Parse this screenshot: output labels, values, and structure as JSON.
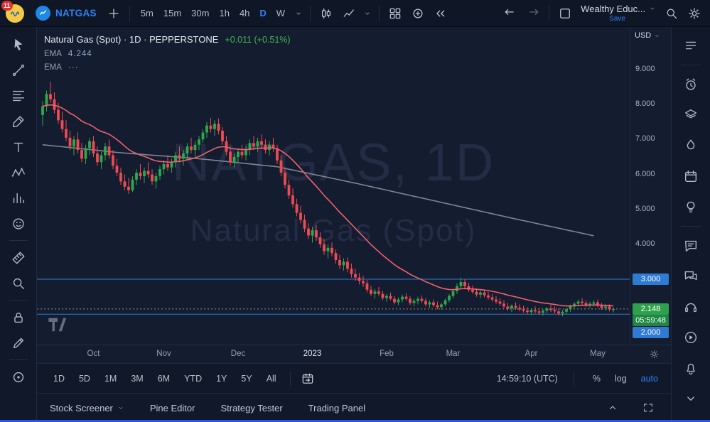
{
  "header": {
    "account_badge": "11",
    "symbol": "NATGAS",
    "timeframes": [
      "5m",
      "15m",
      "30m",
      "1h",
      "4h",
      "D",
      "W"
    ],
    "active_timeframe": "D",
    "layout_name": "Wealthy Educ...",
    "save_label": "Save"
  },
  "left_toolbar": {
    "icons": [
      "cursor",
      "trend-line",
      "fib-retracement",
      "brush",
      "text",
      "xabcd-pattern",
      "forecast",
      "emoji",
      "measure",
      "zoom",
      "lock-drawings",
      "edit-drawings",
      "hide-marks"
    ]
  },
  "right_sidebar": {
    "icons": [
      "watchlist",
      "alerts",
      "object-tree",
      "hotlists",
      "calendar",
      "ideas",
      "public-chats",
      "chat",
      "help",
      "video-tutorials",
      "notifications",
      "more"
    ]
  },
  "chart": {
    "legend_title": "Natural Gas (Spot) · 1D · PEPPERSTONE",
    "legend_change": "+0.011 (+0.51%)",
    "indicator1_name": "EMA",
    "indicator1_value": "4.244",
    "indicator2_name": "EMA",
    "indicator2_value": "···",
    "watermark_top": "NATGAS, 1D",
    "watermark_bottom": "Natural Gas (Spot)",
    "currency_button": "USD",
    "last_price_label": "2.148",
    "countdown": "05:59:48"
  },
  "range_toolbar": {
    "ranges": [
      "1D",
      "5D",
      "1M",
      "3M",
      "6M",
      "YTD",
      "1Y",
      "5Y",
      "All"
    ],
    "clock": "14:59:10 (UTC)",
    "percent_label": "%",
    "log_label": "log",
    "auto_label": "auto"
  },
  "footer": {
    "tabs": [
      "Stock Screener",
      "Pine Editor",
      "Strategy Tester",
      "Trading Panel"
    ]
  },
  "colors": {
    "up": "#2fa84d",
    "down": "#ef4a52",
    "ema_fast": "#f0616d",
    "ema_slow": "#9298a4",
    "level_line": "#2e7bd3",
    "level_label_bg": "#2e7bd3",
    "last_price_bg": "#2fa14d",
    "countdown_bg": "#1f8743",
    "last_line": "#8b9099",
    "accent_blue": "#2f81f7",
    "change_green": "#40b750"
  },
  "chart_data": {
    "type": "candlestick",
    "title": "Natural Gas (Spot), 1D, PEPPERSTONE",
    "y_range": [
      1.13,
      10.22
    ],
    "y_ticks": [
      9,
      8,
      7,
      6,
      5,
      4
    ],
    "levels": [
      {
        "price": 3.0,
        "label": "3.000"
      },
      {
        "price": 2.0,
        "label": "2.000"
      }
    ],
    "last_price": 2.148,
    "ema_fast_period": 25,
    "ema_slow_points": [
      [
        0,
        6.85
      ],
      [
        20,
        6.62
      ],
      [
        40,
        6.45
      ],
      [
        60,
        6.22
      ],
      [
        80,
        5.75
      ],
      [
        100,
        5.25
      ],
      [
        120,
        4.75
      ],
      [
        141,
        4.244
      ]
    ],
    "x_ticks": [
      {
        "i": 13,
        "label": "Oct"
      },
      {
        "i": 31,
        "label": "Nov"
      },
      {
        "i": 50,
        "label": "Dec"
      },
      {
        "i": 69,
        "label": "2023",
        "year": true
      },
      {
        "i": 88,
        "label": "Feb"
      },
      {
        "i": 105,
        "label": "Mar"
      },
      {
        "i": 125,
        "label": "Apr"
      },
      {
        "i": 142,
        "label": "May"
      }
    ],
    "candles": [
      [
        7.7,
        8.1,
        7.4,
        7.95
      ],
      [
        7.95,
        8.4,
        7.8,
        8.3
      ],
      [
        8.3,
        8.65,
        8.05,
        8.15
      ],
      [
        8.15,
        8.35,
        7.75,
        7.85
      ],
      [
        7.85,
        8.05,
        7.45,
        7.55
      ],
      [
        7.55,
        7.8,
        7.2,
        7.3
      ],
      [
        7.3,
        7.55,
        6.95,
        7.05
      ],
      [
        7.05,
        7.25,
        6.7,
        6.8
      ],
      [
        6.8,
        7.1,
        6.55,
        7.0
      ],
      [
        7.0,
        7.2,
        6.6,
        6.7
      ],
      [
        6.7,
        6.9,
        6.35,
        6.45
      ],
      [
        6.45,
        6.85,
        6.3,
        6.75
      ],
      [
        6.75,
        7.05,
        6.55,
        6.95
      ],
      [
        6.95,
        7.1,
        6.5,
        6.6
      ],
      [
        6.6,
        6.8,
        6.25,
        6.35
      ],
      [
        6.35,
        6.65,
        6.15,
        6.55
      ],
      [
        6.55,
        6.9,
        6.4,
        6.8
      ],
      [
        6.8,
        7.0,
        6.45,
        6.55
      ],
      [
        6.55,
        6.7,
        6.15,
        6.25
      ],
      [
        6.25,
        6.45,
        5.95,
        6.05
      ],
      [
        6.05,
        6.2,
        5.7,
        5.8
      ],
      [
        5.8,
        6.0,
        5.55,
        5.65
      ],
      [
        5.65,
        5.9,
        5.45,
        5.55
      ],
      [
        5.55,
        5.95,
        5.5,
        5.85
      ],
      [
        5.85,
        6.15,
        5.7,
        6.05
      ],
      [
        6.05,
        6.3,
        5.85,
        5.95
      ],
      [
        5.95,
        6.2,
        5.75,
        6.1
      ],
      [
        6.1,
        6.35,
        5.9,
        6.0
      ],
      [
        6.0,
        6.15,
        5.7,
        5.8
      ],
      [
        5.8,
        6.05,
        5.6,
        5.95
      ],
      [
        5.95,
        6.25,
        5.85,
        6.15
      ],
      [
        6.15,
        6.4,
        6.0,
        6.3
      ],
      [
        6.3,
        6.55,
        6.1,
        6.2
      ],
      [
        6.2,
        6.45,
        6.05,
        6.35
      ],
      [
        6.35,
        6.65,
        6.2,
        6.55
      ],
      [
        6.55,
        6.8,
        6.35,
        6.45
      ],
      [
        6.45,
        6.7,
        6.25,
        6.6
      ],
      [
        6.6,
        6.9,
        6.45,
        6.8
      ],
      [
        6.8,
        7.05,
        6.6,
        6.7
      ],
      [
        6.7,
        6.95,
        6.5,
        6.85
      ],
      [
        6.85,
        7.1,
        6.7,
        7.0
      ],
      [
        7.0,
        7.3,
        6.9,
        7.2
      ],
      [
        7.2,
        7.5,
        7.05,
        7.4
      ],
      [
        7.4,
        7.62,
        7.2,
        7.3
      ],
      [
        7.3,
        7.55,
        7.1,
        7.45
      ],
      [
        7.45,
        7.6,
        7.15,
        7.25
      ],
      [
        7.25,
        7.35,
        6.85,
        6.95
      ],
      [
        6.95,
        7.1,
        6.55,
        6.65
      ],
      [
        6.65,
        6.8,
        6.25,
        6.35
      ],
      [
        6.35,
        6.6,
        6.2,
        6.5
      ],
      [
        6.5,
        6.75,
        6.35,
        6.65
      ],
      [
        6.65,
        6.85,
        6.45,
        6.55
      ],
      [
        6.55,
        6.8,
        6.4,
        6.7
      ],
      [
        6.7,
        7.0,
        6.55,
        6.9
      ],
      [
        6.9,
        7.1,
        6.7,
        6.8
      ],
      [
        6.8,
        7.05,
        6.65,
        6.95
      ],
      [
        6.95,
        7.15,
        6.75,
        6.85
      ],
      [
        6.85,
        7.0,
        6.6,
        6.7
      ],
      [
        6.7,
        6.95,
        6.55,
        6.85
      ],
      [
        6.85,
        7.05,
        6.65,
        6.75
      ],
      [
        6.75,
        6.85,
        6.3,
        6.4
      ],
      [
        6.4,
        6.55,
        5.95,
        6.05
      ],
      [
        6.05,
        6.2,
        5.6,
        5.7
      ],
      [
        5.7,
        5.85,
        5.3,
        5.4
      ],
      [
        5.4,
        5.6,
        5.05,
        5.15
      ],
      [
        5.15,
        5.3,
        4.8,
        4.9
      ],
      [
        4.9,
        5.1,
        4.6,
        4.7
      ],
      [
        4.7,
        4.85,
        4.35,
        4.45
      ],
      [
        4.45,
        4.6,
        4.15,
        4.25
      ],
      [
        4.25,
        4.5,
        4.05,
        4.4
      ],
      [
        4.4,
        4.55,
        4.1,
        4.2
      ],
      [
        4.2,
        4.35,
        3.9,
        4.0
      ],
      [
        4.0,
        4.15,
        3.7,
        3.8
      ],
      [
        3.8,
        4.0,
        3.6,
        3.9
      ],
      [
        3.9,
        4.05,
        3.65,
        3.75
      ],
      [
        3.75,
        3.85,
        3.45,
        3.55
      ],
      [
        3.55,
        3.7,
        3.3,
        3.4
      ],
      [
        3.4,
        3.6,
        3.25,
        3.5
      ],
      [
        3.5,
        3.62,
        3.2,
        3.3
      ],
      [
        3.3,
        3.45,
        3.05,
        3.15
      ],
      [
        3.15,
        3.3,
        2.95,
        3.05
      ],
      [
        3.05,
        3.18,
        2.85,
        2.95
      ],
      [
        2.95,
        3.1,
        2.78,
        2.88
      ],
      [
        2.88,
        2.98,
        2.62,
        2.7
      ],
      [
        2.7,
        2.82,
        2.52,
        2.58
      ],
      [
        2.58,
        2.72,
        2.45,
        2.65
      ],
      [
        2.65,
        2.78,
        2.52,
        2.58
      ],
      [
        2.58,
        2.66,
        2.4,
        2.46
      ],
      [
        2.46,
        2.58,
        2.36,
        2.52
      ],
      [
        2.52,
        2.62,
        2.4,
        2.44
      ],
      [
        2.44,
        2.52,
        2.28,
        2.34
      ],
      [
        2.34,
        2.48,
        2.26,
        2.42
      ],
      [
        2.42,
        2.56,
        2.34,
        2.5
      ],
      [
        2.5,
        2.6,
        2.38,
        2.44
      ],
      [
        2.44,
        2.52,
        2.26,
        2.32
      ],
      [
        2.32,
        2.44,
        2.22,
        2.38
      ],
      [
        2.38,
        2.5,
        2.28,
        2.44
      ],
      [
        2.44,
        2.54,
        2.32,
        2.38
      ],
      [
        2.38,
        2.46,
        2.22,
        2.28
      ],
      [
        2.28,
        2.4,
        2.18,
        2.34
      ],
      [
        2.34,
        2.42,
        2.2,
        2.26
      ],
      [
        2.26,
        2.36,
        2.14,
        2.2
      ],
      [
        2.2,
        2.32,
        2.12,
        2.28
      ],
      [
        2.28,
        2.45,
        2.22,
        2.4
      ],
      [
        2.4,
        2.58,
        2.34,
        2.52
      ],
      [
        2.52,
        2.72,
        2.46,
        2.66
      ],
      [
        2.66,
        2.88,
        2.58,
        2.8
      ],
      [
        2.8,
        3.05,
        2.72,
        2.92
      ],
      [
        2.92,
        3.0,
        2.74,
        2.8
      ],
      [
        2.8,
        2.9,
        2.64,
        2.7
      ],
      [
        2.7,
        2.82,
        2.58,
        2.64
      ],
      [
        2.64,
        2.74,
        2.5,
        2.56
      ],
      [
        2.56,
        2.68,
        2.46,
        2.62
      ],
      [
        2.62,
        2.7,
        2.48,
        2.54
      ],
      [
        2.54,
        2.64,
        2.42,
        2.48
      ],
      [
        2.48,
        2.58,
        2.36,
        2.42
      ],
      [
        2.42,
        2.52,
        2.3,
        2.36
      ],
      [
        2.36,
        2.46,
        2.24,
        2.3
      ],
      [
        2.3,
        2.4,
        2.16,
        2.22
      ],
      [
        2.22,
        2.32,
        2.1,
        2.16
      ],
      [
        2.16,
        2.28,
        2.06,
        2.24
      ],
      [
        2.24,
        2.34,
        2.12,
        2.18
      ],
      [
        2.18,
        2.28,
        2.08,
        2.14
      ],
      [
        2.14,
        2.24,
        2.04,
        2.1
      ],
      [
        2.1,
        2.2,
        2.0,
        2.06
      ],
      [
        2.06,
        2.16,
        1.98,
        2.12
      ],
      [
        2.12,
        2.22,
        2.02,
        2.08
      ],
      [
        2.08,
        2.18,
        1.98,
        2.04
      ],
      [
        2.04,
        2.14,
        1.96,
        2.1
      ],
      [
        2.1,
        2.2,
        2.02,
        2.16
      ],
      [
        2.16,
        2.26,
        2.06,
        2.12
      ],
      [
        2.12,
        2.22,
        2.02,
        2.08
      ],
      [
        2.08,
        2.16,
        1.96,
        2.02
      ],
      [
        2.02,
        2.12,
        1.94,
        2.07
      ],
      [
        2.07,
        2.17,
        2.0,
        2.14
      ],
      [
        2.14,
        2.27,
        2.07,
        2.22
      ],
      [
        2.22,
        2.34,
        2.14,
        2.3
      ],
      [
        2.3,
        2.42,
        2.22,
        2.36
      ],
      [
        2.36,
        2.46,
        2.26,
        2.32
      ],
      [
        2.32,
        2.4,
        2.2,
        2.26
      ],
      [
        2.26,
        2.36,
        2.18,
        2.3
      ],
      [
        2.3,
        2.4,
        2.22,
        2.34
      ],
      [
        2.34,
        2.42,
        2.2,
        2.24
      ],
      [
        2.24,
        2.32,
        2.12,
        2.18
      ],
      [
        2.18,
        2.28,
        2.1,
        2.22
      ],
      [
        2.22,
        2.28,
        2.08,
        2.137
      ],
      [
        2.12,
        2.2,
        2.05,
        2.148
      ]
    ]
  }
}
